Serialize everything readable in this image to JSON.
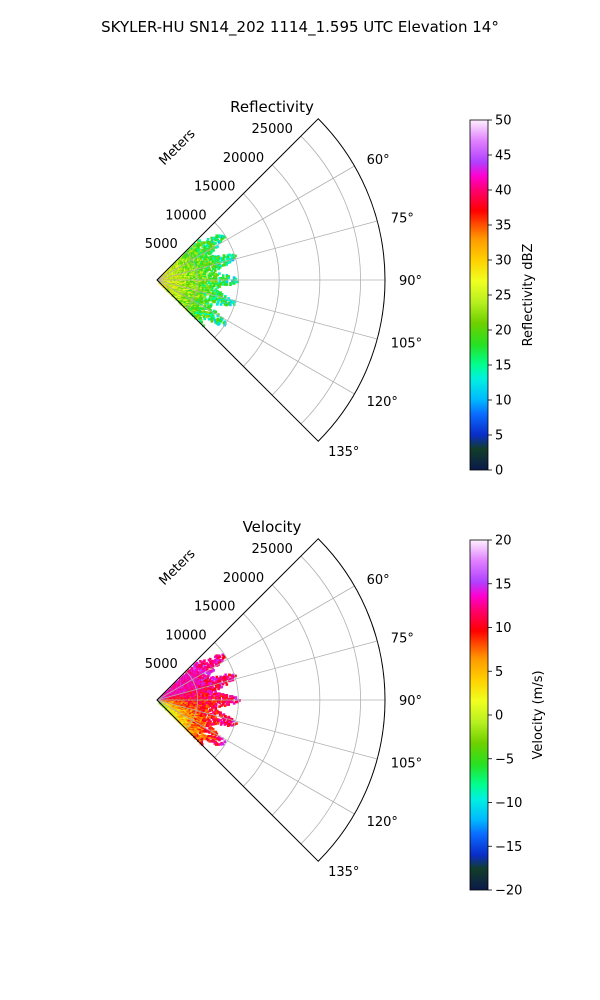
{
  "suptitle": "SKYLER-HU  SN14_202  1114_1.595 UTC Elevation 14°",
  "chart_data": [
    {
      "type": "polar_sector_radar",
      "title": "Reflectivity",
      "range_unit_label": "Meters",
      "range_ticks": [
        5000,
        10000,
        15000,
        20000,
        25000
      ],
      "range_tick_labels": [
        "5000",
        "10000",
        "15000",
        "20000",
        "25000"
      ],
      "rmax": 28000,
      "azimuth_range_deg": [
        45,
        135
      ],
      "azimuth_ticks": [
        60,
        75,
        90,
        105,
        120,
        135
      ],
      "azimuth_tick_labels": [
        "60°",
        "75°",
        "90°",
        "105°",
        "120°",
        "135°"
      ],
      "data_extent_m": 10000,
      "colorbar": {
        "label": "Reflectivity dBZ",
        "min": 0,
        "max": 50,
        "ticks": [
          0,
          5,
          10,
          15,
          20,
          25,
          30,
          35,
          40,
          45,
          50
        ],
        "tick_labels": [
          "0",
          "5",
          "10",
          "15",
          "20",
          "25",
          "30",
          "35",
          "40",
          "45",
          "50"
        ],
        "stops": [
          [
            0,
            "#0b1a4a"
          ],
          [
            0.06,
            "#123d2a"
          ],
          [
            0.1,
            "#0a2cc8"
          ],
          [
            0.16,
            "#0a6cff"
          ],
          [
            0.2,
            "#00b8ff"
          ],
          [
            0.26,
            "#00f0e0"
          ],
          [
            0.3,
            "#00ff90"
          ],
          [
            0.36,
            "#28e020"
          ],
          [
            0.42,
            "#6fd000"
          ],
          [
            0.48,
            "#b8f020"
          ],
          [
            0.54,
            "#f0ff20"
          ],
          [
            0.6,
            "#ffd000"
          ],
          [
            0.66,
            "#ff9a00"
          ],
          [
            0.7,
            "#ff5000"
          ],
          [
            0.74,
            "#ff0000"
          ],
          [
            0.8,
            "#ff0070"
          ],
          [
            0.84,
            "#ff00d0"
          ],
          [
            0.88,
            "#b040ff"
          ],
          [
            0.94,
            "#e080ff"
          ],
          [
            1.0,
            "#fff0ff"
          ]
        ]
      }
    },
    {
      "type": "polar_sector_radar",
      "title": "Velocity",
      "range_unit_label": "Meters",
      "range_ticks": [
        5000,
        10000,
        15000,
        20000,
        25000
      ],
      "range_tick_labels": [
        "5000",
        "10000",
        "15000",
        "20000",
        "25000"
      ],
      "rmax": 28000,
      "azimuth_range_deg": [
        45,
        135
      ],
      "azimuth_ticks": [
        60,
        75,
        90,
        105,
        120,
        135
      ],
      "azimuth_tick_labels": [
        "60°",
        "75°",
        "90°",
        "105°",
        "120°",
        "135°"
      ],
      "data_extent_m": 10000,
      "colorbar": {
        "label": "Velocity (m/s)",
        "min": -20,
        "max": 20,
        "ticks": [
          -20,
          -15,
          -10,
          -5,
          0,
          5,
          10,
          15,
          20
        ],
        "tick_labels": [
          "−20",
          "−15",
          "−10",
          "−5",
          "0",
          "5",
          "10",
          "15",
          "20"
        ],
        "stops": [
          [
            0,
            "#0b1a4a"
          ],
          [
            0.06,
            "#123d2a"
          ],
          [
            0.1,
            "#0a2cc8"
          ],
          [
            0.16,
            "#0a6cff"
          ],
          [
            0.2,
            "#00b8ff"
          ],
          [
            0.26,
            "#00f0e0"
          ],
          [
            0.3,
            "#00ff90"
          ],
          [
            0.36,
            "#28e020"
          ],
          [
            0.42,
            "#6fd000"
          ],
          [
            0.48,
            "#b8f020"
          ],
          [
            0.54,
            "#f0ff20"
          ],
          [
            0.6,
            "#ffd000"
          ],
          [
            0.66,
            "#ff9a00"
          ],
          [
            0.7,
            "#ff5000"
          ],
          [
            0.74,
            "#ff0000"
          ],
          [
            0.8,
            "#ff0070"
          ],
          [
            0.84,
            "#ff00d0"
          ],
          [
            0.88,
            "#b040ff"
          ],
          [
            0.94,
            "#e080ff"
          ],
          [
            1.0,
            "#fff0ff"
          ]
        ]
      }
    }
  ]
}
